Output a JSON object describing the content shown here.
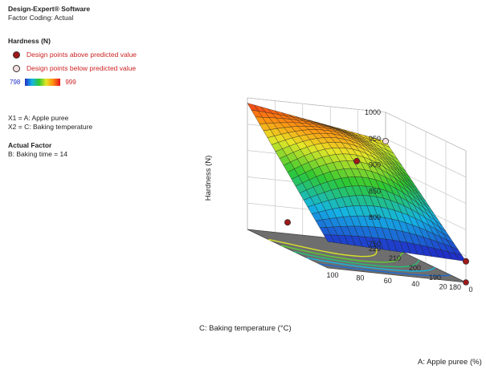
{
  "legend": {
    "software": "Design-Expert® Software",
    "factor_coding": "Factor Coding: Actual",
    "response": "Hardness (N)",
    "above": "Design points above predicted value",
    "below": "Design points below predicted value",
    "scale_min": "798",
    "scale_max": "999",
    "x1": "X1 = A: Apple puree",
    "x2": "X2 = C: Baking temperature",
    "actual_factor_title": "Actual Factor",
    "actual_factor_value": "B: Baking time = 14",
    "above_color": "#a01818",
    "below_color": "#f4dede"
  },
  "chart_data": {
    "type": "surface",
    "xlabel": "A: Apple puree (%)",
    "ylabel": "C: Baking temperature (°C)",
    "zlabel": "Hardness (N)",
    "x_ticks": [
      "0",
      "20",
      "40",
      "60",
      "80",
      "100"
    ],
    "y_ticks": [
      "180",
      "190",
      "200",
      "210",
      "220"
    ],
    "z_ticks": [
      "750",
      "800",
      "850",
      "900",
      "950",
      "1000"
    ],
    "xlim": [
      0,
      100
    ],
    "ylim": [
      180,
      220
    ],
    "zlim": [
      750,
      1000
    ],
    "surface_corners": {
      "x0_y180": 790,
      "x100_y180": 800,
      "x0_y220": 945,
      "x100_y220": 990
    },
    "design_points": [
      {
        "x": 0,
        "y": 220,
        "z": 945,
        "side": "below"
      },
      {
        "x": 50,
        "y": 200,
        "z": 930,
        "side": "above"
      },
      {
        "x": 100,
        "y": 200,
        "z": 800,
        "side": "above"
      },
      {
        "x": 0,
        "y": 180,
        "z": 790,
        "side": "above"
      }
    ]
  }
}
